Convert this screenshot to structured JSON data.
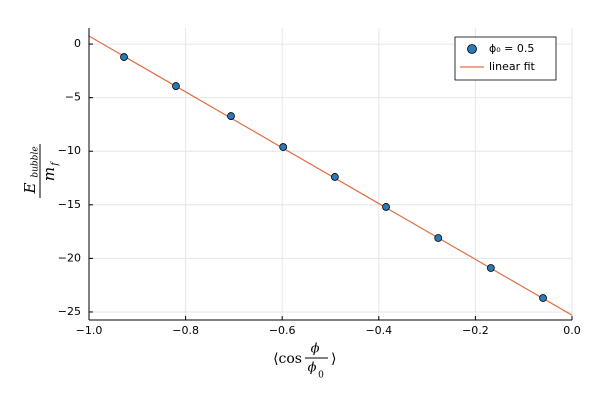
{
  "chart_data": {
    "type": "scatter",
    "xlabel": {
      "left": "⟨cos",
      "numerator": "ϕ",
      "denominator": "ϕ",
      "denominator_sub": "0",
      "right": "⟩"
    },
    "ylabel": {
      "numerator": "E",
      "numerator_sub": "bubble",
      "denominator": "m",
      "denominator_sub": "f"
    },
    "xlim": [
      -1.0,
      0.0
    ],
    "ylim": [
      -25.75,
      1.5
    ],
    "xticks": [
      {
        "value": -1.0,
        "label": "−1.0"
      },
      {
        "value": -0.8,
        "label": "−0.8"
      },
      {
        "value": -0.6,
        "label": "−0.6"
      },
      {
        "value": -0.4,
        "label": "−0.4"
      },
      {
        "value": -0.2,
        "label": "−0.2"
      },
      {
        "value": 0.0,
        "label": "0.0"
      }
    ],
    "yticks": [
      0,
      {
        "value": -5,
        "label": "−5"
      },
      {
        "value": -10,
        "label": "−10"
      },
      {
        "value": -15,
        "label": "−15"
      },
      {
        "value": -20,
        "label": "−20"
      },
      {
        "value": -25,
        "label": "−25"
      }
    ],
    "grid": true,
    "legend": "top-right",
    "series": [
      {
        "name": "ϕ₀ = 0.5",
        "mode": "markers",
        "color": "#2a7ab9",
        "x": [
          -0.9275,
          -0.82,
          -0.706,
          -0.598,
          -0.491,
          -0.385,
          -0.277,
          -0.168,
          -0.06
        ],
        "values": [
          -1.21,
          -3.92,
          -6.72,
          -9.61,
          -12.4,
          -15.2,
          -18.1,
          -20.9,
          -23.7
        ]
      },
      {
        "name": "linear fit",
        "mode": "line",
        "color": "#e26f46",
        "x": [
          -1.0,
          0.0
        ],
        "values": [
          0.75,
          -25.3
        ]
      }
    ]
  }
}
